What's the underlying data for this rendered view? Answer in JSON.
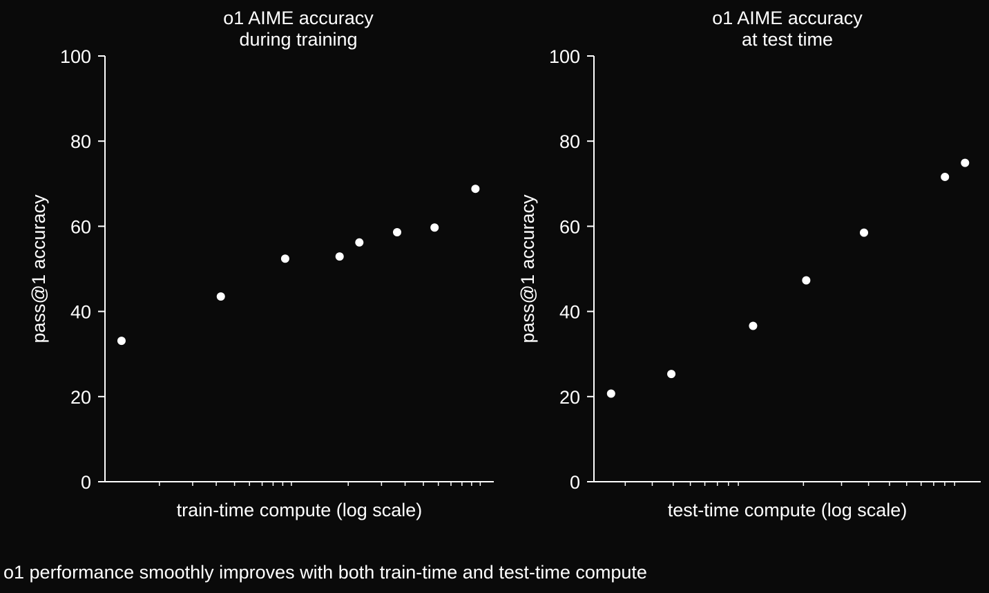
{
  "caption": "o1 performance smoothly improves with both train-time and test-time compute",
  "chart_data": [
    {
      "type": "scatter",
      "title": [
        "o1 AIME accuracy",
        "during training"
      ],
      "xlabel": "train-time compute (log scale)",
      "ylabel": "pass@1 accuracy",
      "xscale": "log",
      "xlim": [
        1.03,
        118
      ],
      "ylim": [
        0,
        100
      ],
      "yticks": [
        0,
        20,
        40,
        60,
        80,
        100
      ],
      "grid": false,
      "color": "#ffffff",
      "points": [
        {
          "x": 1.26,
          "y": 33.1
        },
        {
          "x": 4.23,
          "y": 43.5
        },
        {
          "x": 9.27,
          "y": 52.4
        },
        {
          "x": 18.0,
          "y": 52.9
        },
        {
          "x": 22.9,
          "y": 56.2
        },
        {
          "x": 36.3,
          "y": 58.6
        },
        {
          "x": 57.3,
          "y": 59.7
        },
        {
          "x": 94.3,
          "y": 68.8
        }
      ]
    },
    {
      "type": "scatter",
      "title": [
        "o1 AIME accuracy",
        "at test time"
      ],
      "xlabel": "test-time compute (log scale)",
      "ylabel": "pass@1 accuracy",
      "xscale": "log",
      "xlim": [
        2.15,
        132
      ],
      "ylim": [
        0,
        100
      ],
      "yticks": [
        0,
        20,
        40,
        60,
        80,
        100
      ],
      "grid": false,
      "color": "#ffffff",
      "points": [
        {
          "x": 2.58,
          "y": 20.7
        },
        {
          "x": 4.9,
          "y": 25.3
        },
        {
          "x": 11.7,
          "y": 36.6
        },
        {
          "x": 20.6,
          "y": 47.3
        },
        {
          "x": 38.1,
          "y": 58.5
        },
        {
          "x": 90.2,
          "y": 71.6
        },
        {
          "x": 111.7,
          "y": 74.9
        }
      ]
    }
  ]
}
